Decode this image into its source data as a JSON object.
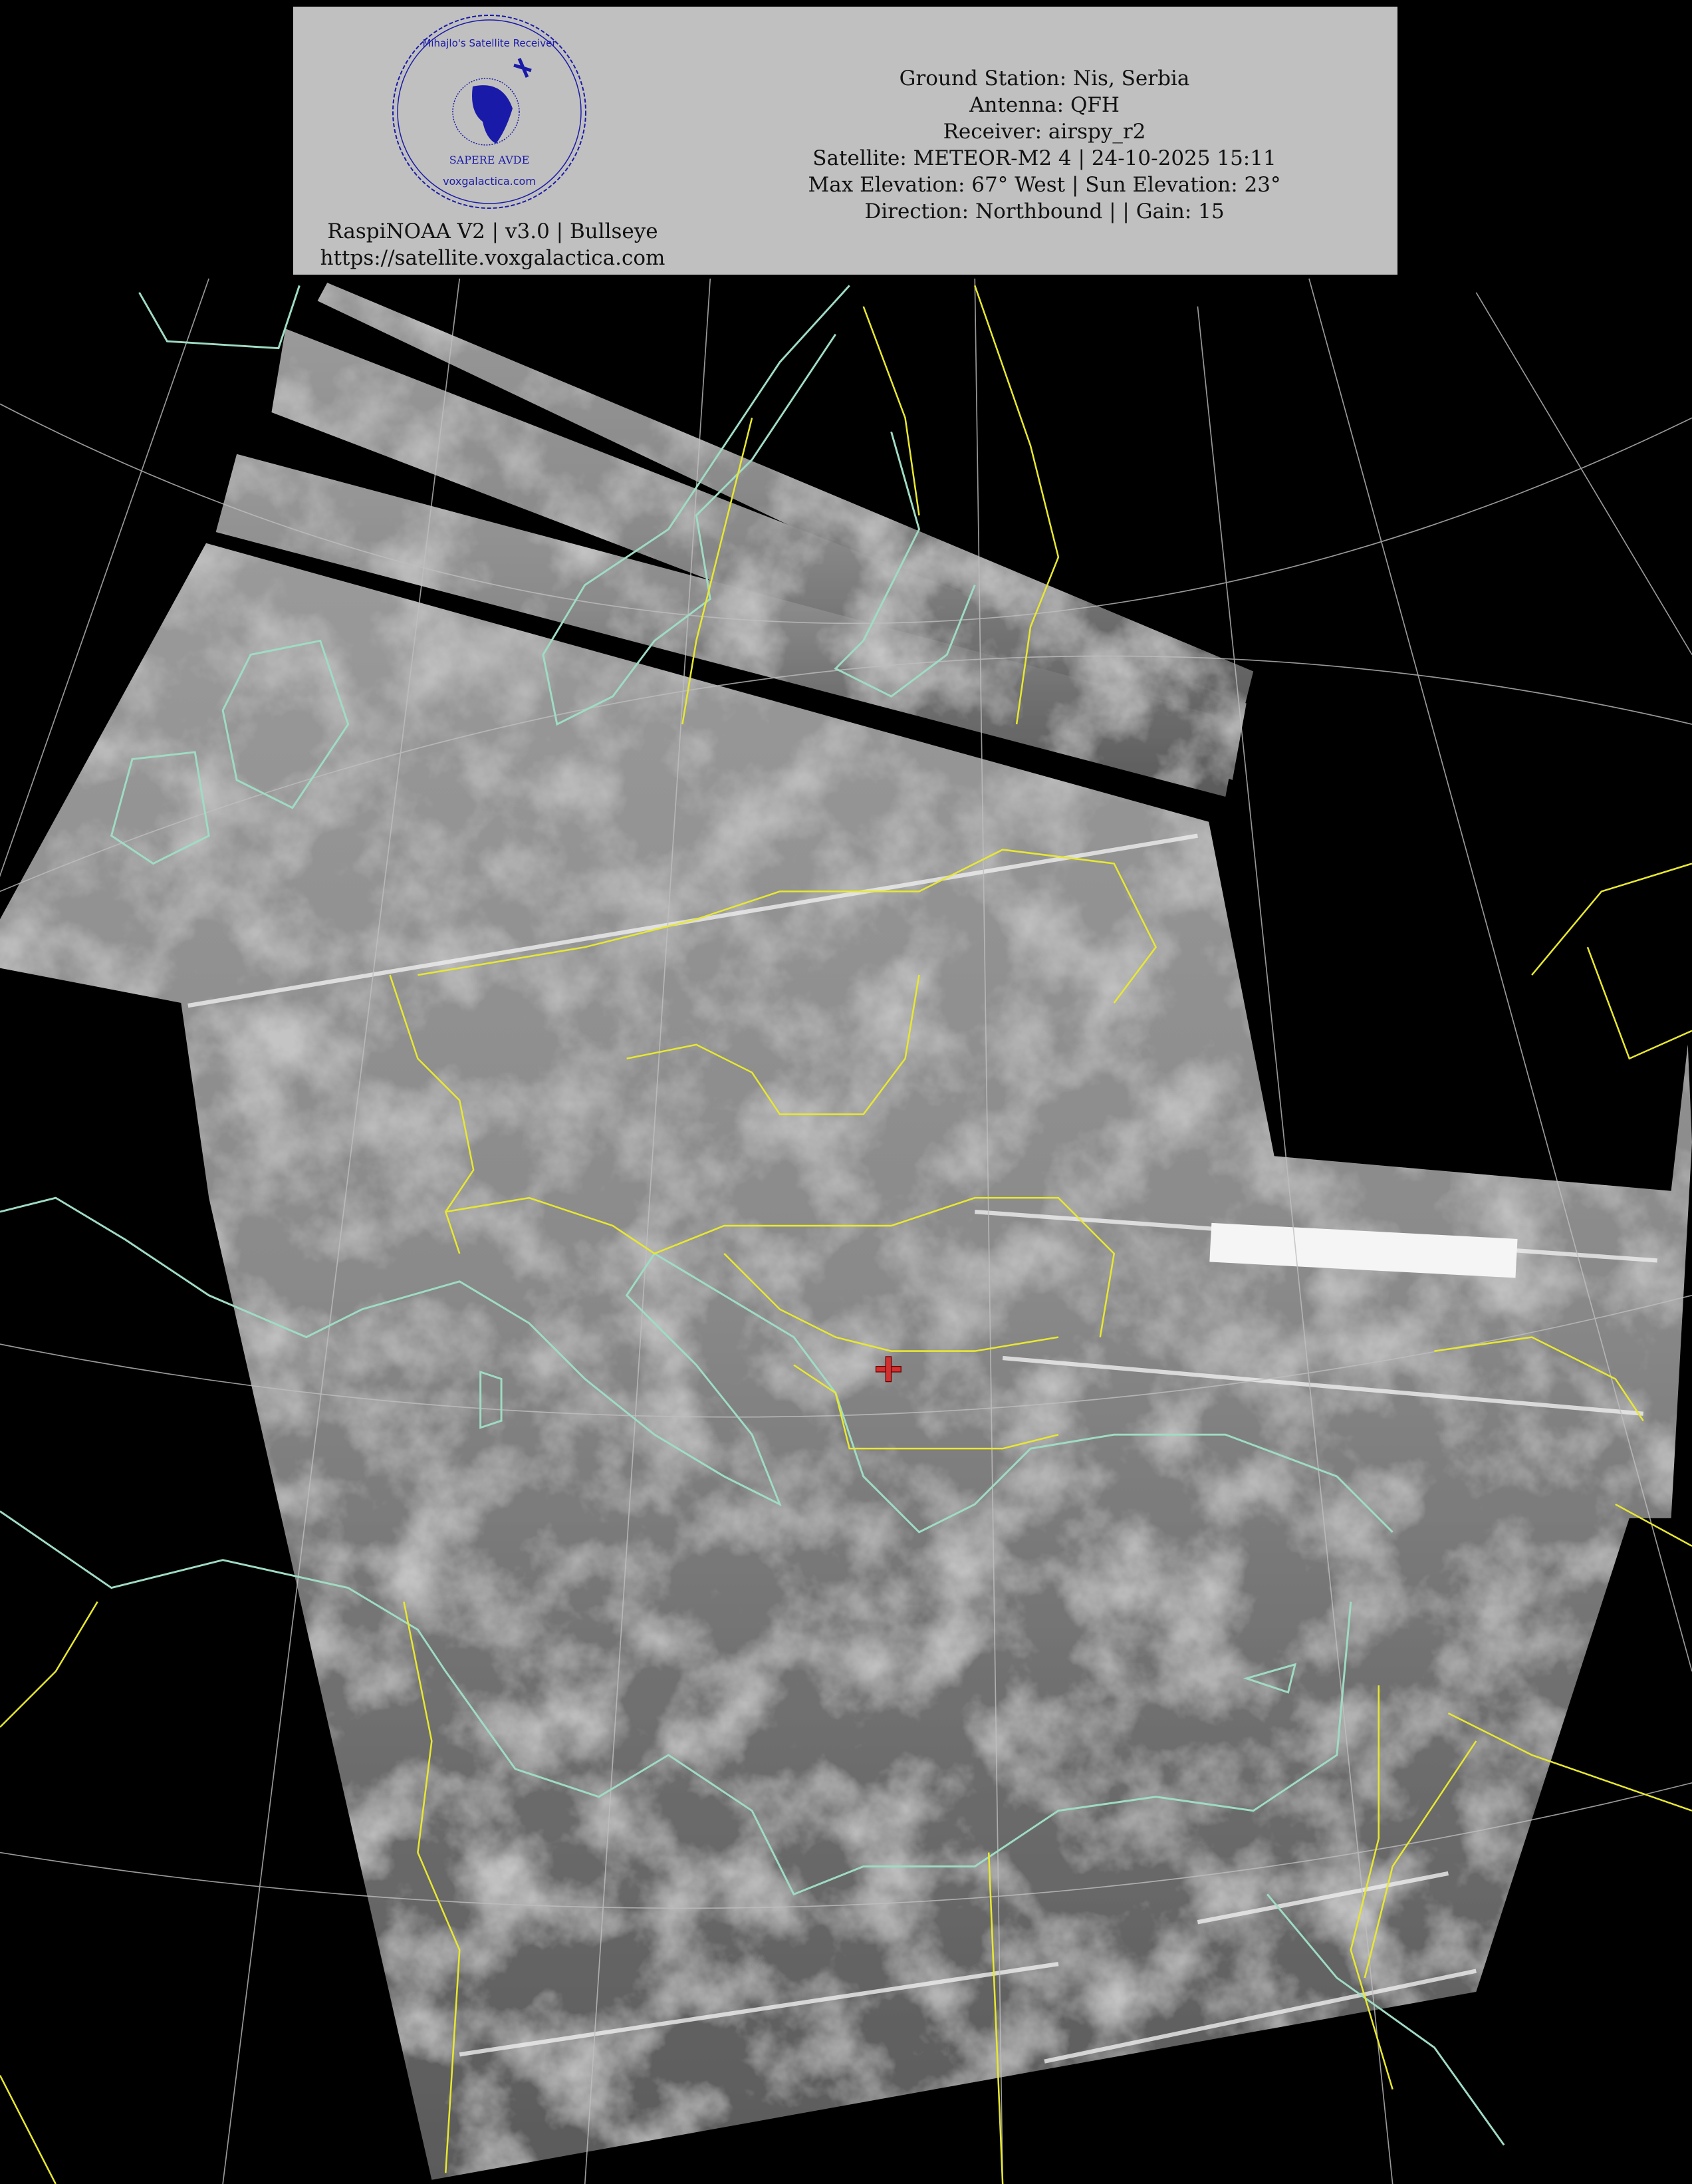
{
  "header": {
    "info_lines": [
      "Ground Station: Nis, Serbia",
      "Antenna: QFH",
      "Receiver: airspy_r2",
      "Satellite: METEOR-M2 4 | 24-10-2025 15:11",
      "Max Elevation: 67° West | Sun Elevation: 23°",
      "Direction: Northbound | | Gain: 15"
    ],
    "software_line": "RaspiNOAA V2 | v3.0 | Bullseye",
    "url_line": "https://satellite.voxgalactica.com",
    "logo": {
      "top_text": "Mihajlo's Satellite Receiver",
      "motto": "SAPERE AVDE",
      "bottom_text": "voxgalactica.com",
      "color": "#1a1aa8"
    }
  },
  "map": {
    "coastline_color": "#9fdcc4",
    "border_color": "#e8e830",
    "graticule_color": "#bfbfbf",
    "ground_station_marker": "red-cross-marker",
    "marker_color": "#d03030"
  }
}
